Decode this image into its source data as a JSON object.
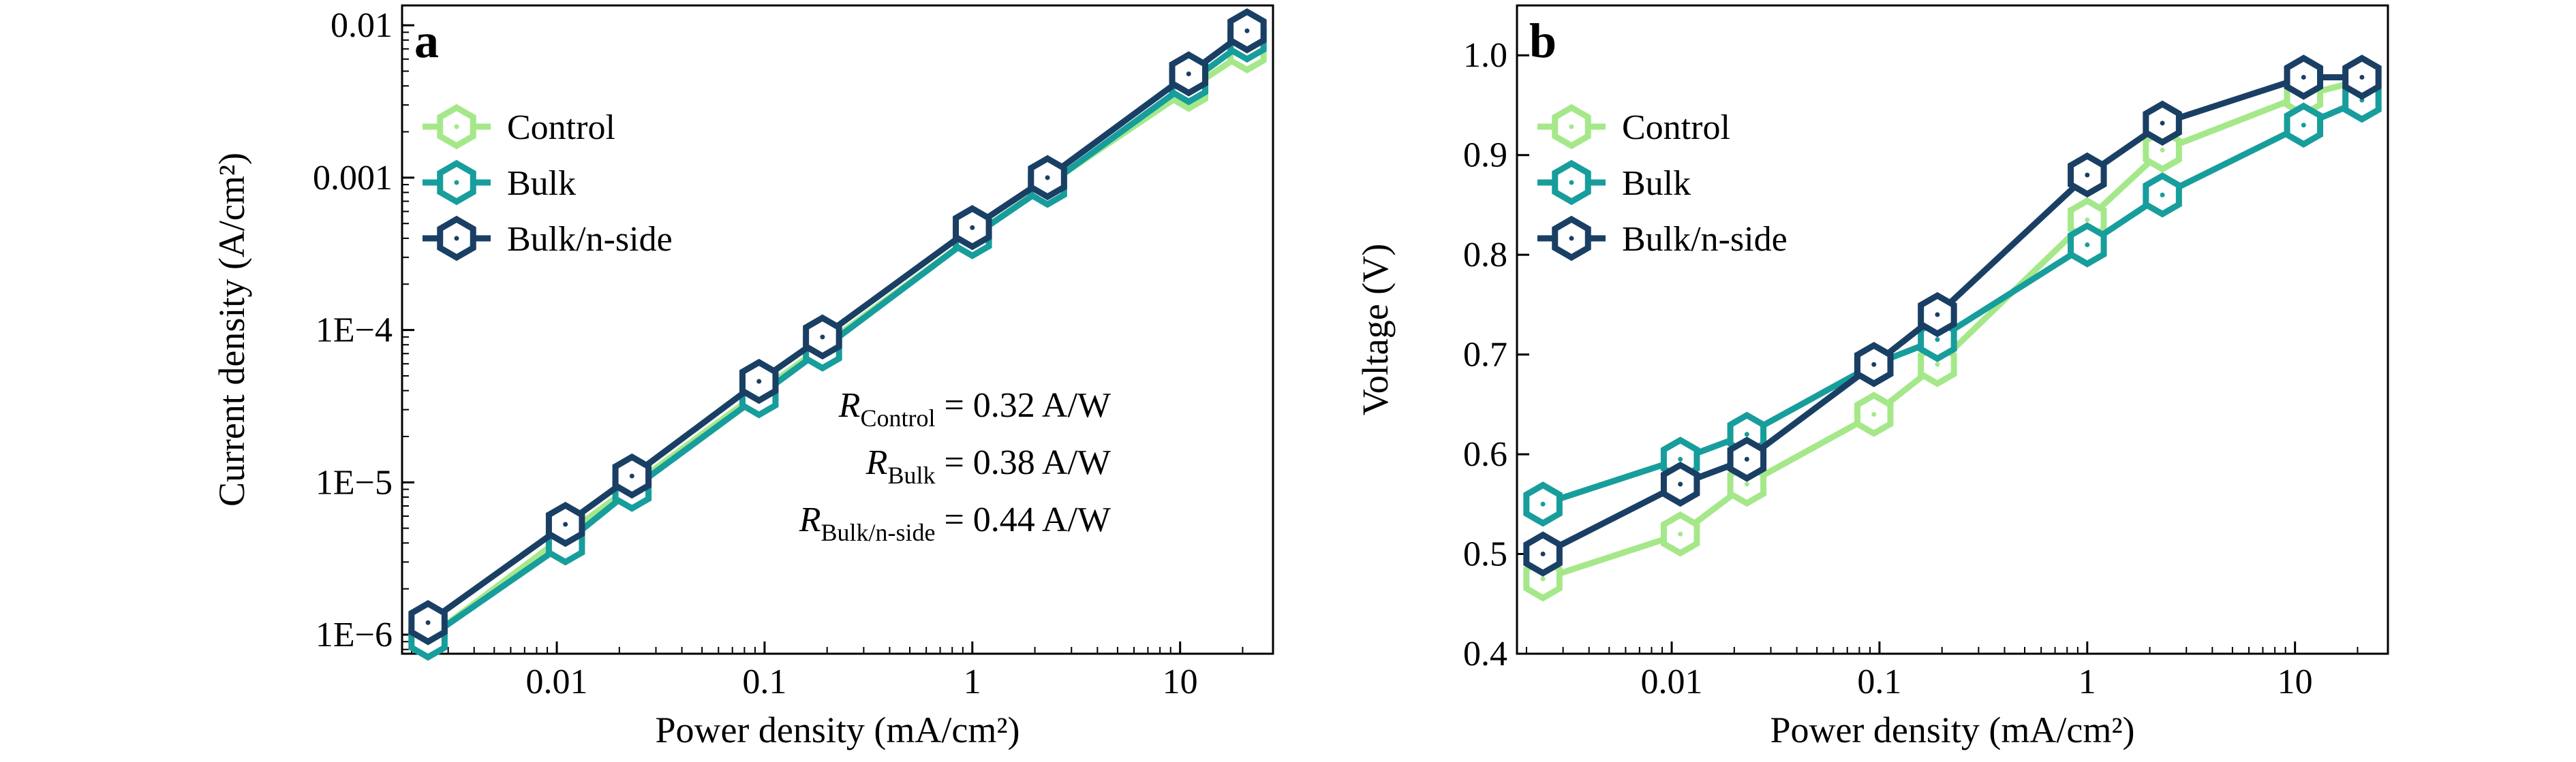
{
  "figure": {
    "series_styles": [
      {
        "name": "Control",
        "color": "#a5e88a"
      },
      {
        "name": "Bulk",
        "color": "#179d9c"
      },
      {
        "name": "Bulk/n-side",
        "color": "#1a3f64"
      }
    ]
  },
  "chart_data": [
    {
      "type": "line",
      "panel_label": "a",
      "xlabel": "Power density (mA/cm²)",
      "ylabel": "Current density (A/cm²)",
      "xscale": "log",
      "yscale": "log",
      "xlim": [
        0.0018,
        28
      ],
      "ylim": [
        7.5e-07,
        0.0135
      ],
      "xticks": [
        {
          "value": 0.01,
          "label": "0.01"
        },
        {
          "value": 0.1,
          "label": "0.1"
        },
        {
          "value": 1,
          "label": "1"
        },
        {
          "value": 10,
          "label": "10"
        }
      ],
      "yticks": [
        {
          "value": 1e-06,
          "label": "1E−6"
        },
        {
          "value": 1e-05,
          "label": "1E−5"
        },
        {
          "value": 0.0001,
          "label": "1E−4"
        },
        {
          "value": 0.001,
          "label": "0.001"
        },
        {
          "value": 0.01,
          "label": "0.01"
        }
      ],
      "legend_position": "upper-left",
      "x": [
        0.0024,
        0.011,
        0.023,
        0.094,
        0.19,
        1.0,
        2.3,
        11,
        21
      ],
      "series": [
        {
          "name": "Control",
          "values": [
            9.5e-07,
            4.5e-06,
            9.5e-06,
            3.9e-05,
            7.8e-05,
            0.00041,
            0.0009,
            0.0038,
            0.0068
          ]
        },
        {
          "name": "Bulk",
          "values": [
            9.5e-07,
            4e-06,
            9e-06,
            3.7e-05,
            7.5e-05,
            0.00041,
            0.00089,
            0.0042,
            0.008
          ]
        },
        {
          "name": "Bulk/n-side",
          "values": [
            1.2e-06,
            5.3e-06,
            1.1e-05,
            4.6e-05,
            9e-05,
            0.00047,
            0.001,
            0.0048,
            0.0092
          ]
        }
      ],
      "annotations": [
        {
          "symbol": "R",
          "subscript": "Control",
          "value": " = 0.32 A/W"
        },
        {
          "symbol": "R",
          "subscript": "Bulk",
          "value": " = 0.38 A/W"
        },
        {
          "symbol": "R",
          "subscript": "Bulk/n-side",
          "value": " = 0.44 A/W"
        }
      ]
    },
    {
      "type": "line",
      "panel_label": "b",
      "xlabel": "Power density (mA/cm²)",
      "ylabel": "Voltage (V)",
      "xscale": "log",
      "yscale": "linear",
      "xlim": [
        0.0018,
        28
      ],
      "ylim": [
        0.4,
        1.05
      ],
      "xticks": [
        {
          "value": 0.01,
          "label": "0.01"
        },
        {
          "value": 0.1,
          "label": "0.1"
        },
        {
          "value": 1,
          "label": "1"
        },
        {
          "value": 10,
          "label": "10"
        }
      ],
      "yticks": [
        {
          "value": 0.4,
          "label": "0.4"
        },
        {
          "value": 0.5,
          "label": "0.5"
        },
        {
          "value": 0.6,
          "label": "0.6"
        },
        {
          "value": 0.7,
          "label": "0.7"
        },
        {
          "value": 0.8,
          "label": "0.8"
        },
        {
          "value": 0.9,
          "label": "0.9"
        },
        {
          "value": 1.0,
          "label": "1.0"
        }
      ],
      "legend_position": "upper-left",
      "x": [
        0.0024,
        0.011,
        0.023,
        0.094,
        0.19,
        1.0,
        2.3,
        11,
        21
      ],
      "series": [
        {
          "name": "Control",
          "values": [
            0.475,
            0.52,
            0.57,
            0.64,
            0.69,
            0.835,
            0.905,
            0.96,
            0.975
          ]
        },
        {
          "name": "Bulk",
          "values": [
            0.55,
            0.595,
            0.62,
            0.69,
            0.715,
            0.81,
            0.86,
            0.93,
            0.955
          ]
        },
        {
          "name": "Bulk/n-side",
          "values": [
            0.5,
            0.57,
            0.595,
            0.69,
            0.74,
            0.88,
            0.932,
            0.978,
            0.978
          ]
        }
      ],
      "annotations": []
    }
  ]
}
